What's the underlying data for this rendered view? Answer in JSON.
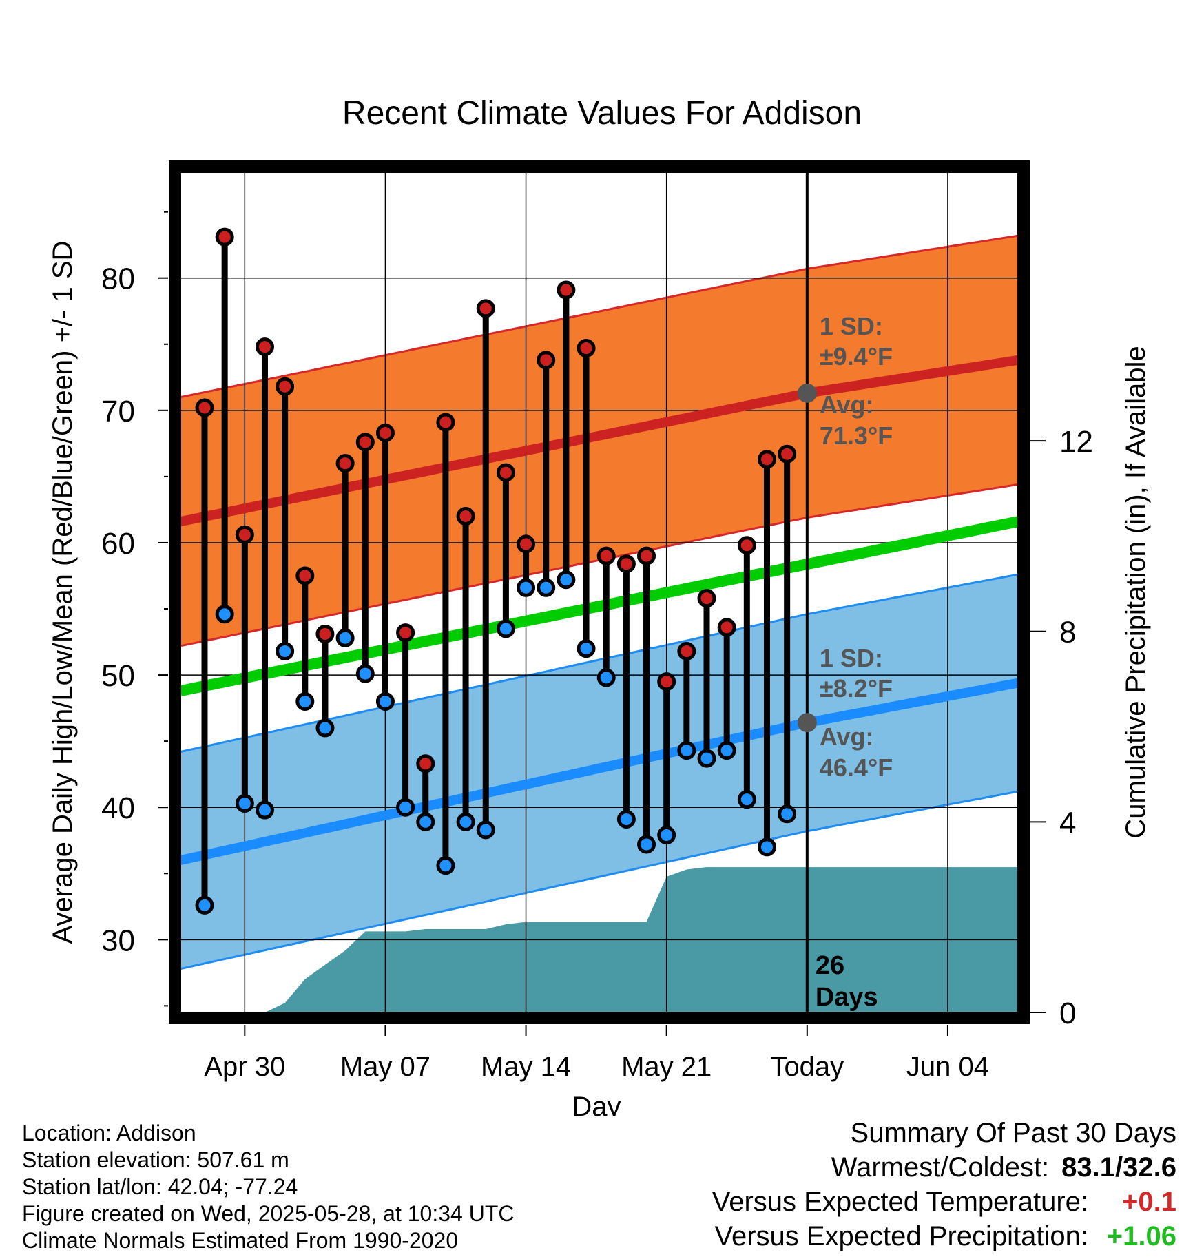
{
  "chart_data": {
    "type": "line",
    "title": "Recent Climate Values For Addison",
    "xlabel": "Day",
    "ylabel": "Average Daily High/Low/Mean (Red/Blue/Green) +/- 1 SD",
    "y2label": "Cumulative Precipitation (in), If Available",
    "x_ticks": [
      "Apr 30",
      "May 07",
      "May 14",
      "May 21",
      "Today",
      "Jun 04"
    ],
    "x_tick_days": [
      3,
      10,
      17,
      24,
      31,
      38
    ],
    "xlim": [
      -0.2,
      41.5
    ],
    "ylim": [
      24.5,
      88
    ],
    "y_ticks": [
      30,
      40,
      50,
      60,
      70,
      80
    ],
    "y2lim": [
      0,
      17.64
    ],
    "y2_ticks": [
      0,
      4,
      8,
      12
    ],
    "today_day": 31,
    "days_label": "26 Days",
    "highs": [
      70.2,
      83.1,
      60.6,
      74.8,
      71.8,
      57.5,
      53.1,
      66.0,
      67.6,
      68.3,
      53.2,
      43.3,
      69.1,
      62.0,
      77.7,
      65.3,
      59.9,
      73.8,
      79.1,
      74.7,
      59.0,
      58.4,
      59.0,
      49.5,
      51.8,
      55.8,
      53.6,
      59.8,
      66.3,
      66.7
    ],
    "lows": [
      32.6,
      54.6,
      40.3,
      39.8,
      51.8,
      48.0,
      46.0,
      52.8,
      50.1,
      48.0,
      40.0,
      38.9,
      35.6,
      38.9,
      38.3,
      53.5,
      56.6,
      56.6,
      57.2,
      52.0,
      49.8,
      39.1,
      37.2,
      37.9,
      44.3,
      43.7,
      44.3,
      40.6,
      37.0,
      39.5
    ],
    "normal_high_avg": {
      "start": 61.6,
      "today": 71.3,
      "end": 73.8
    },
    "normal_high_sd": 9.4,
    "normal_low_avg": {
      "start": 36.0,
      "today": 46.4,
      "end": 49.4
    },
    "normal_low_sd": 8.2,
    "normal_mean": {
      "start": 48.8,
      "end": 61.6
    },
    "precip_cumulative_days": [
      3,
      4,
      5,
      6,
      7,
      8,
      9,
      10,
      11,
      12,
      13,
      14,
      15,
      16,
      17,
      18,
      19,
      20,
      21,
      22,
      23,
      24,
      25,
      26,
      27,
      28,
      29,
      30,
      31,
      32,
      41.5
    ],
    "precip_cumulative_values": [
      0.0,
      0.0,
      0.2,
      0.7,
      1.0,
      1.3,
      1.7,
      1.7,
      1.7,
      1.75,
      1.75,
      1.75,
      1.75,
      1.85,
      1.9,
      1.9,
      1.9,
      1.9,
      1.9,
      1.9,
      1.9,
      2.85,
      3.0,
      3.05,
      3.05,
      3.05,
      3.05,
      3.05,
      3.05,
      3.05,
      3.05
    ],
    "annotations": {
      "high_sd_line1": "1 SD:",
      "high_sd_line2": "±9.4°F",
      "high_avg_line1": "Avg:",
      "high_avg_line2": "71.3°F",
      "low_sd_line1": "1 SD:",
      "low_sd_line2": "±8.2°F",
      "low_avg_line1": "Avg:",
      "low_avg_line2": "46.4°F"
    },
    "colors": {
      "high_band": "#f47a2e",
      "high_edge": "#d62828",
      "high_avg": "#cc2222",
      "low_band": "#7fbfe6",
      "low_edge": "#1e8cf0",
      "low_avg": "#1a8cff",
      "mean": "#00cc00",
      "precip": "#4a9aa6",
      "high_dot": "#cc2020",
      "low_dot": "#1e90ff",
      "today_dot": "#555555",
      "annotation": "#555555"
    },
    "grid": true
  },
  "footer": {
    "location": "Location: Addison",
    "elevation": "Station elevation: 507.61 m",
    "latlon": "Station lat/lon: 42.04; -77.24",
    "created": "Figure created on Wed, 2025-05-28, at 10:34 UTC",
    "normals": "Climate Normals Estimated From 1990-2020"
  },
  "summary": {
    "title": "Summary Of Past 30 Days",
    "warm_cold_label": "Warmest/Coldest:",
    "warm_cold_value": "83.1/32.6",
    "temp_label": "Versus Expected Temperature:",
    "temp_value": "+0.1",
    "temp_color": "#d62828",
    "precip_label": "Versus Expected Precipitation:",
    "precip_value": "+1.06",
    "precip_color": "#22bb22"
  }
}
